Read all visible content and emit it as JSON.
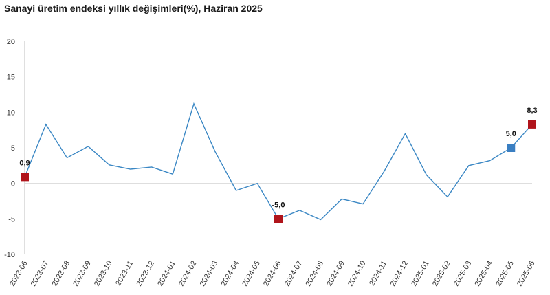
{
  "chart_data": {
    "type": "line",
    "title": "Sanayi üretim endeksi yıllık değişimleri(%), Haziran 2025",
    "xlabel": "",
    "ylabel": "",
    "ylim": [
      -10,
      20
    ],
    "yticks": [
      -10,
      -5,
      0,
      5,
      10,
      15,
      20
    ],
    "ytick_labels": [
      "-10",
      "-5",
      "0",
      "5",
      "10",
      "15",
      "20"
    ],
    "grid": false,
    "legend": "none",
    "colors": {
      "line": "#3a87c4",
      "marker_red": "#b0141b",
      "marker_blue": "#3a7fc2",
      "zero_line": "#d9d9d9",
      "axis": "#bfbfbf"
    },
    "categories": [
      "2023-06",
      "2023-07",
      "2023-08",
      "2023-09",
      "2023-10",
      "2023-11",
      "2023-12",
      "2024-01",
      "2024-02",
      "2024-03",
      "2024-04",
      "2024-05",
      "2024-06",
      "2024-07",
      "2024-08",
      "2024-09",
      "2024-10",
      "2024-11",
      "2024-12",
      "2025-01",
      "2025-02",
      "2025-03",
      "2025-04",
      "2025-05",
      "2025-06"
    ],
    "series": [
      {
        "values": [
          0.9,
          8.3,
          3.6,
          5.2,
          2.6,
          2.0,
          2.3,
          1.3,
          11.2,
          4.5,
          -1.0,
          0.0,
          -5.0,
          -3.8,
          -5.1,
          -2.2,
          -2.9,
          1.7,
          7.0,
          1.2,
          -1.9,
          2.5,
          3.2,
          5.0,
          8.3
        ]
      }
    ],
    "highlights": [
      {
        "index": 0,
        "label": "0,9",
        "color": "#b0141b"
      },
      {
        "index": 12,
        "label": "-5,0",
        "color": "#b0141b"
      },
      {
        "index": 23,
        "label": "5,0",
        "color": "#3a7fc2"
      },
      {
        "index": 24,
        "label": "8,3",
        "color": "#b0141b"
      }
    ]
  }
}
